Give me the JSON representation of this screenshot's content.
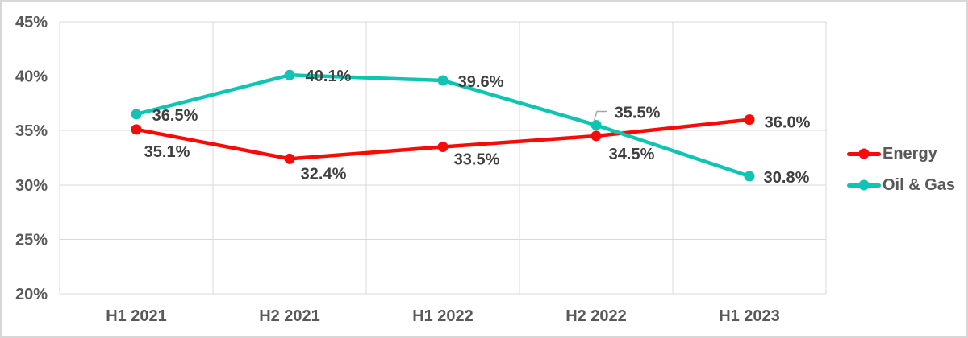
{
  "chart_data": {
    "type": "line",
    "title": "",
    "categories": [
      "H1 2021",
      "H2 2021",
      "H1 2022",
      "H2 2022",
      "H1 2023"
    ],
    "series": [
      {
        "name": "Energy",
        "color": "#f80b06",
        "values": [
          35.1,
          32.4,
          33.5,
          34.5,
          36.0
        ],
        "point_labels": [
          "35.1%",
          "32.4%",
          "33.5%",
          "34.5%",
          "36.0%"
        ],
        "label_offsets": [
          [
            38,
            27
          ],
          [
            42,
            18
          ],
          [
            42,
            15
          ],
          [
            44,
            22
          ],
          [
            47,
            3
          ]
        ]
      },
      {
        "name": "Oil & Gas",
        "color": "#10c4b3",
        "values": [
          36.5,
          40.1,
          39.6,
          35.5,
          30.8
        ],
        "point_labels": [
          "36.5%",
          "40.1%",
          "39.6%",
          "35.5%",
          "30.8%"
        ],
        "label_offsets": [
          [
            48,
            1
          ],
          [
            48,
            1
          ],
          [
            47,
            1
          ],
          [
            51,
            -16
          ],
          [
            46,
            1
          ]
        ],
        "leader_index": 3
      }
    ],
    "xlabel": "",
    "ylabel": "",
    "ylim": [
      20,
      45
    ],
    "ytick_labels": [
      "45%",
      "40%",
      "35%",
      "30%",
      "25%",
      "20%"
    ],
    "grid": true,
    "legend_position": "right",
    "colors": {
      "axis_text": "#595959",
      "data_label_text": "#404040",
      "gridline": "#d9d9d9",
      "leader_line": "#a6a6a6",
      "frame_border": "#d7d7d7",
      "background": "#ffffff"
    }
  }
}
